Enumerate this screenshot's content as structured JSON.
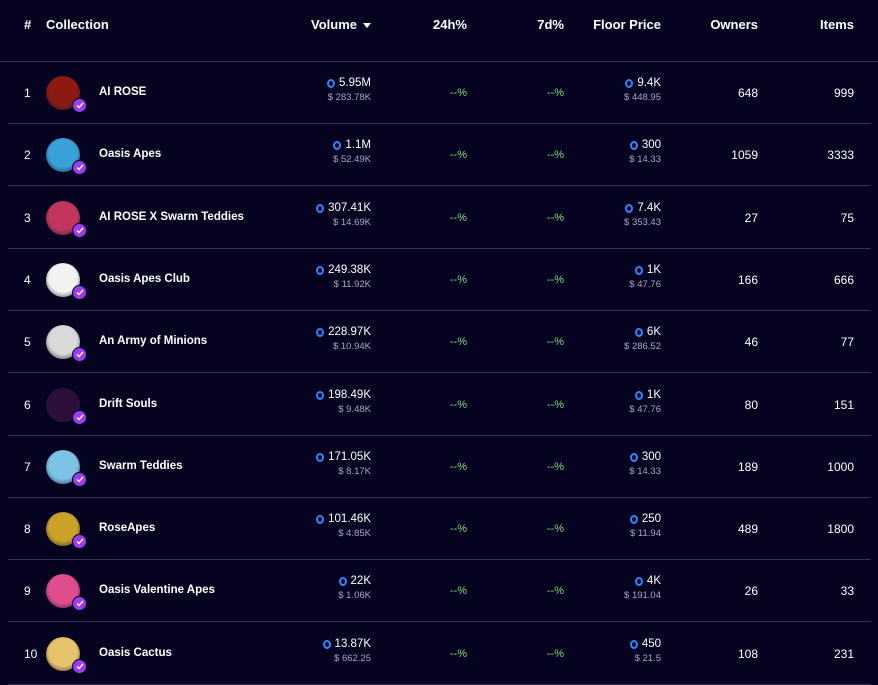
{
  "header": {
    "rank": "#",
    "collection": "Collection",
    "volume": "Volume",
    "change_24h": "24h%",
    "change_7d": "7d%",
    "floor_price": "Floor Price",
    "owners": "Owners",
    "items": "Items",
    "sort": "volume-descending"
  },
  "colors": {
    "background": "#050320",
    "positive": "#7be07d",
    "coin": "#2f86ff",
    "verified": "#9b3cf0",
    "divider": "#34324d"
  },
  "rows": [
    {
      "rank": "1",
      "name": "AI ROSE",
      "volume": "5.95M",
      "volume_usd": "$ 283.78K",
      "change_24h": "--%",
      "change_7d": "--%",
      "floor": "9.4K",
      "floor_usd": "$ 448.95",
      "owners": "648",
      "items": "999",
      "avatar_color": "#8a1a12"
    },
    {
      "rank": "2",
      "name": "Oasis Apes",
      "volume": "1.1M",
      "volume_usd": "$ 52.49K",
      "change_24h": "--%",
      "change_7d": "--%",
      "floor": "300",
      "floor_usd": "$ 14.33",
      "owners": "1059",
      "items": "3333",
      "avatar_color": "#3aa0d8"
    },
    {
      "rank": "3",
      "name": "AI ROSE X Swarm Teddies",
      "volume": "307.41K",
      "volume_usd": "$ 14.69K",
      "change_24h": "--%",
      "change_7d": "--%",
      "floor": "7.4K",
      "floor_usd": "$ 353.43",
      "owners": "27",
      "items": "75",
      "avatar_color": "#c2365e"
    },
    {
      "rank": "4",
      "name": "Oasis Apes Club",
      "volume": "249.38K",
      "volume_usd": "$ 11.92K",
      "change_24h": "--%",
      "change_7d": "--%",
      "floor": "1K",
      "floor_usd": "$ 47.76",
      "owners": "166",
      "items": "666",
      "avatar_color": "#f2f2f2"
    },
    {
      "rank": "5",
      "name": "An Army of Minions",
      "volume": "228.97K",
      "volume_usd": "$ 10.94K",
      "change_24h": "--%",
      "change_7d": "--%",
      "floor": "6K",
      "floor_usd": "$ 286.52",
      "owners": "46",
      "items": "77",
      "avatar_color": "#d9d9d9"
    },
    {
      "rank": "6",
      "name": "Drift Souls",
      "volume": "198.49K",
      "volume_usd": "$ 9.48K",
      "change_24h": "--%",
      "change_7d": "--%",
      "floor": "1K",
      "floor_usd": "$ 47.76",
      "owners": "80",
      "items": "151",
      "avatar_color": "#2b0f3a"
    },
    {
      "rank": "7",
      "name": "Swarm Teddies",
      "volume": "171.05K",
      "volume_usd": "$ 8.17K",
      "change_24h": "--%",
      "change_7d": "--%",
      "floor": "300",
      "floor_usd": "$ 14.33",
      "owners": "189",
      "items": "1000",
      "avatar_color": "#7cc3e6"
    },
    {
      "rank": "8",
      "name": "RoseApes",
      "volume": "101.46K",
      "volume_usd": "$ 4.85K",
      "change_24h": "--%",
      "change_7d": "--%",
      "floor": "250",
      "floor_usd": "$ 11.94",
      "owners": "489",
      "items": "1800",
      "avatar_color": "#c9a227"
    },
    {
      "rank": "9",
      "name": "Oasis Valentine Apes",
      "volume": "22K",
      "volume_usd": "$ 1.06K",
      "change_24h": "--%",
      "change_7d": "--%",
      "floor": "4K",
      "floor_usd": "$ 191.04",
      "owners": "26",
      "items": "33",
      "avatar_color": "#e04d8c"
    },
    {
      "rank": "10",
      "name": "Oasis Cactus",
      "volume": "13.87K",
      "volume_usd": "$ 662.25",
      "change_24h": "--%",
      "change_7d": "--%",
      "floor": "450",
      "floor_usd": "$ 21.5",
      "owners": "108",
      "items": "231",
      "avatar_color": "#e8c36a"
    }
  ]
}
